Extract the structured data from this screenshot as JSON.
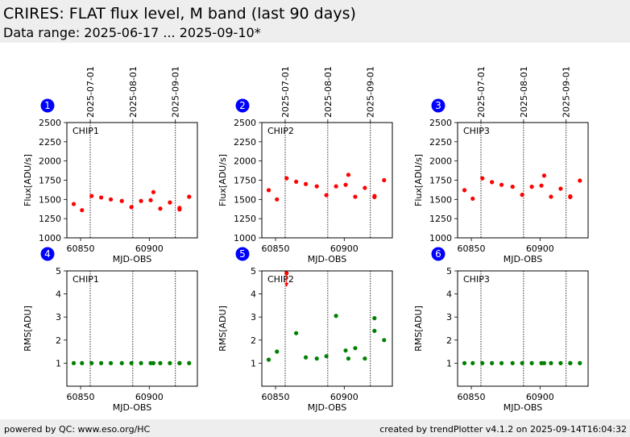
{
  "header": {
    "title": "CRIRES: FLAT flux level, M band (last 90 days)",
    "subtitle": "Data range: 2025-06-17 ... 2025-09-10*"
  },
  "footer": {
    "left": "powered by QC: www.eso.org/HC",
    "right": "created by trendPlotter v4.1.2 on 2025-09-14T16:04:32"
  },
  "colors": {
    "flux": "#ff0000",
    "rms": "#008000",
    "badge": "#0000ff",
    "background": "#ffffff",
    "bar": "#eeeeee"
  },
  "chart_data": [
    {
      "type": "scatter",
      "panel": "1",
      "chip": "CHIP1",
      "xlabel": "MJD-OBS",
      "ylabel": "Flux[ADU/s]",
      "xlim": [
        60840,
        60935
      ],
      "ylim": [
        1000,
        2500
      ],
      "xticks": [
        60850,
        60900
      ],
      "yticks": [
        1000,
        1250,
        1500,
        1750,
        2000,
        2250,
        2500
      ],
      "date_markers": [
        {
          "x": 60857,
          "label": "2025-07-01"
        },
        {
          "x": 60888,
          "label": "2025-08-01"
        },
        {
          "x": 60919,
          "label": "2025-09-01"
        }
      ],
      "color": "#ff0000",
      "x": [
        60845,
        60851,
        60858,
        60865,
        60872,
        60880,
        60887,
        60894,
        60901,
        60903,
        60908,
        60915,
        60922,
        60922,
        60929
      ],
      "y": [
        1440,
        1360,
        1545,
        1525,
        1500,
        1480,
        1400,
        1480,
        1490,
        1595,
        1380,
        1460,
        1370,
        1390,
        1535
      ]
    },
    {
      "type": "scatter",
      "panel": "2",
      "chip": "CHIP2",
      "xlabel": "MJD-OBS",
      "ylabel": "Flux[ADU/s]",
      "xlim": [
        60840,
        60935
      ],
      "ylim": [
        1000,
        2500
      ],
      "xticks": [
        60850,
        60900
      ],
      "yticks": [
        1000,
        1250,
        1500,
        1750,
        2000,
        2250,
        2500
      ],
      "date_markers": [
        {
          "x": 60857,
          "label": "2025-07-01"
        },
        {
          "x": 60888,
          "label": "2025-08-01"
        },
        {
          "x": 60919,
          "label": "2025-09-01"
        }
      ],
      "color": "#ff0000",
      "x": [
        60845,
        60851,
        60858,
        60865,
        60872,
        60880,
        60887,
        60894,
        60901,
        60903,
        60908,
        60915,
        60922,
        60922,
        60929
      ],
      "y": [
        1620,
        1500,
        1775,
        1730,
        1700,
        1670,
        1555,
        1670,
        1690,
        1820,
        1535,
        1650,
        1530,
        1545,
        1750
      ]
    },
    {
      "type": "scatter",
      "panel": "3",
      "chip": "CHIP3",
      "xlabel": "MJD-OBS",
      "ylabel": "Flux[ADU/s]",
      "xlim": [
        60840,
        60935
      ],
      "ylim": [
        1000,
        2500
      ],
      "xticks": [
        60850,
        60900
      ],
      "yticks": [
        1000,
        1250,
        1500,
        1750,
        2000,
        2250,
        2500
      ],
      "date_markers": [
        {
          "x": 60857,
          "label": "2025-07-01"
        },
        {
          "x": 60888,
          "label": "2025-08-01"
        },
        {
          "x": 60919,
          "label": "2025-09-01"
        }
      ],
      "color": "#ff0000",
      "x": [
        60845,
        60851,
        60858,
        60865,
        60872,
        60880,
        60887,
        60894,
        60901,
        60903,
        60908,
        60915,
        60922,
        60922,
        60929
      ],
      "y": [
        1620,
        1510,
        1775,
        1725,
        1690,
        1665,
        1560,
        1665,
        1680,
        1810,
        1535,
        1640,
        1530,
        1540,
        1745
      ]
    },
    {
      "type": "scatter",
      "panel": "4",
      "chip": "CHIP1",
      "xlabel": "MJD-OBS",
      "ylabel": "RMS[ADU]",
      "xlim": [
        60840,
        60935
      ],
      "ylim": [
        0,
        5
      ],
      "xticks": [
        60850,
        60900
      ],
      "yticks": [
        1,
        2,
        3,
        4,
        5
      ],
      "date_markers": [
        {
          "x": 60857
        },
        {
          "x": 60888
        },
        {
          "x": 60919
        }
      ],
      "color": "#008000",
      "x": [
        60845,
        60851,
        60858,
        60865,
        60872,
        60880,
        60887,
        60894,
        60901,
        60903,
        60908,
        60915,
        60922,
        60922,
        60929
      ],
      "y": [
        1,
        1,
        1,
        1,
        1,
        1,
        1,
        1,
        1,
        1,
        1,
        1,
        1,
        1,
        1
      ]
    },
    {
      "type": "scatter",
      "panel": "5",
      "chip": "CHIP2",
      "xlabel": "MJD-OBS",
      "ylabel": "RMS[ADU]",
      "xlim": [
        60840,
        60935
      ],
      "ylim": [
        0,
        5
      ],
      "xticks": [
        60850,
        60900
      ],
      "yticks": [
        1,
        2,
        3,
        4,
        5
      ],
      "date_markers": [
        {
          "x": 60857
        },
        {
          "x": 60888
        },
        {
          "x": 60919
        }
      ],
      "color": "#008000",
      "x": [
        60845,
        60851,
        60865,
        60872,
        60880,
        60887,
        60894,
        60901,
        60903,
        60908,
        60915,
        60922,
        60922,
        60929
      ],
      "y": [
        1.15,
        1.5,
        2.3,
        1.25,
        1.2,
        1.3,
        3.05,
        1.55,
        1.2,
        1.65,
        1.2,
        2.4,
        2.95,
        2.0
      ],
      "outliers": [
        {
          "x": 60858,
          "y": 4.9
        }
      ]
    },
    {
      "type": "scatter",
      "panel": "6",
      "chip": "CHIP3",
      "xlabel": "MJD-OBS",
      "ylabel": "RMS[ADU]",
      "xlim": [
        60840,
        60935
      ],
      "ylim": [
        0,
        5
      ],
      "xticks": [
        60850,
        60900
      ],
      "yticks": [
        1,
        2,
        3,
        4,
        5
      ],
      "date_markers": [
        {
          "x": 60857
        },
        {
          "x": 60888
        },
        {
          "x": 60919
        }
      ],
      "color": "#008000",
      "x": [
        60845,
        60851,
        60858,
        60865,
        60872,
        60880,
        60887,
        60894,
        60901,
        60903,
        60908,
        60915,
        60922,
        60922,
        60929
      ],
      "y": [
        1,
        1,
        1,
        1,
        1,
        1,
        1,
        1,
        1,
        1,
        1,
        1,
        1,
        1,
        1
      ]
    }
  ]
}
